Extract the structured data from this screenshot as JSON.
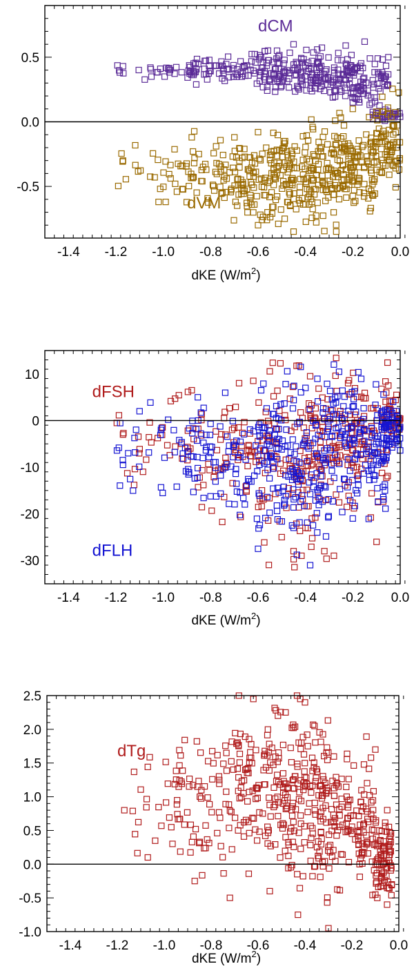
{
  "chart_data": [
    {
      "type": "scatter",
      "xlabel": "dKE (W/m",
      "xlabel_sup": "2",
      "xlabel_end": ")",
      "xlim": [
        -1.5,
        0.0
      ],
      "ylim": [
        -0.9,
        0.9
      ],
      "xticks": [
        -1.4,
        -1.2,
        -1.0,
        -0.8,
        -0.6,
        -0.4,
        -0.2,
        0.0
      ],
      "xtick_labels": [
        "-1.4",
        "-1.2",
        "-1.0",
        "-0.8",
        "-0.6",
        "-0.4",
        "-0.2",
        "0.0"
      ],
      "yticks": [
        -0.5,
        0.0,
        0.5
      ],
      "ytick_labels": [
        "-0.5",
        "0.0",
        "0.5"
      ],
      "zero_line": 0.0,
      "annotations": [
        {
          "text": "dCM",
          "color": "#5b2b97",
          "x": -0.6,
          "y": 0.7
        },
        {
          "text": "dVM",
          "color": "#9a6a00",
          "x": -0.9,
          "y": -0.67
        }
      ],
      "series": [
        {
          "color": "#5b2b97",
          "cloud": [
            [
              -1.2,
              -0.9,
              0.4,
              0.04,
              20
            ],
            [
              -0.9,
              -0.6,
              0.4,
              0.05,
              70
            ],
            [
              -0.6,
              -0.3,
              0.38,
              0.08,
              150
            ],
            [
              -0.3,
              -0.05,
              0.32,
              0.1,
              130
            ],
            [
              -0.12,
              0.0,
              0.05,
              0.02,
              30
            ]
          ],
          "points": [
            [
              -1.17,
              0.43
            ],
            [
              -1.05,
              0.35
            ],
            [
              -0.45,
              0.6
            ],
            [
              -0.15,
              0.62
            ],
            [
              -0.23,
              0.59
            ],
            [
              -0.2,
              0.15
            ],
            [
              -0.05,
              0.5
            ],
            [
              -0.52,
              0.55
            ],
            [
              -0.35,
              0.56
            ]
          ]
        },
        {
          "color": "#9a6a00",
          "cloud": [
            [
              -1.2,
              -0.95,
              -0.38,
              0.08,
              20
            ],
            [
              -0.95,
              -0.75,
              -0.4,
              0.12,
              45
            ],
            [
              -0.75,
              -0.55,
              -0.45,
              0.15,
              90
            ],
            [
              -0.55,
              -0.3,
              -0.42,
              0.17,
              170
            ],
            [
              -0.3,
              -0.1,
              -0.35,
              0.17,
              150
            ],
            [
              -0.1,
              0.0,
              -0.15,
              0.15,
              70
            ]
          ],
          "points": [
            [
              -1.17,
              -0.3
            ],
            [
              -1.02,
              -0.62
            ],
            [
              -0.99,
              -0.62
            ],
            [
              -0.88,
              -0.12
            ],
            [
              -0.85,
              -0.25
            ],
            [
              -0.7,
              -0.12
            ],
            [
              -0.6,
              -0.08
            ],
            [
              -0.45,
              -0.85
            ],
            [
              -0.27,
              -0.85
            ],
            [
              -0.6,
              -0.8
            ],
            [
              -0.1,
              0.05
            ],
            [
              -0.2,
              0.1
            ],
            [
              -0.37,
              -0.04
            ],
            [
              -0.56,
              -0.7
            ]
          ]
        }
      ]
    },
    {
      "type": "scatter",
      "xlabel": "dKE (W/m",
      "xlabel_sup": "2",
      "xlabel_end": ")",
      "xlim": [
        -1.5,
        0.0
      ],
      "ylim": [
        -35,
        15
      ],
      "xticks": [
        -1.4,
        -1.2,
        -1.0,
        -0.8,
        -0.6,
        -0.4,
        -0.2,
        0.0
      ],
      "xtick_labels": [
        "-1.4",
        "-1.2",
        "-1.0",
        "-0.8",
        "-0.6",
        "-0.4",
        "-0.2",
        "0.0"
      ],
      "yticks": [
        -30,
        -20,
        -10,
        0,
        10
      ],
      "ytick_labels": [
        "-30",
        "-20",
        "-10",
        "0",
        "10"
      ],
      "zero_line": 0,
      "annotations": [
        {
          "text": "dFSH",
          "color": "#b01c1c",
          "x": -1.3,
          "y": 5
        },
        {
          "text": "dFLH",
          "color": "#1414d2",
          "x": -1.3,
          "y": -29
        }
      ],
      "series": [
        {
          "color": "#b01c1c",
          "cloud": [
            [
              -1.2,
              -0.9,
              -5,
              4,
              25
            ],
            [
              -0.9,
              -0.6,
              -6,
              6,
              70
            ],
            [
              -0.6,
              -0.3,
              -8,
              9,
              150
            ],
            [
              -0.3,
              -0.05,
              -5,
              7,
              120
            ],
            [
              -0.08,
              0.0,
              0,
              3,
              40
            ]
          ],
          "points": [
            [
              -1.17,
              -3
            ],
            [
              -0.88,
              6.5
            ],
            [
              -0.68,
              8
            ],
            [
              -0.62,
              8.5
            ],
            [
              -0.38,
              9.5
            ],
            [
              -0.45,
              -28
            ],
            [
              -0.32,
              -28
            ],
            [
              -0.28,
              -29
            ],
            [
              -0.1,
              -26
            ],
            [
              -0.4,
              -23
            ],
            [
              -0.5,
              -25
            ],
            [
              -0.22,
              8
            ],
            [
              -0.05,
              7.5
            ]
          ]
        },
        {
          "color": "#1414d2",
          "cloud": [
            [
              -1.2,
              -0.9,
              -7,
              5,
              30
            ],
            [
              -0.9,
              -0.6,
              -8,
              6,
              80
            ],
            [
              -0.6,
              -0.3,
              -8,
              8,
              170
            ],
            [
              -0.3,
              -0.05,
              -6,
              7,
              140
            ],
            [
              -0.08,
              0.0,
              -2,
              3,
              50
            ]
          ],
          "points": [
            [
              -1.17,
              -9.5
            ],
            [
              -1.1,
              2
            ],
            [
              -0.42,
              11.5
            ],
            [
              -0.28,
              12
            ],
            [
              -0.38,
              -31
            ],
            [
              -0.35,
              -24
            ],
            [
              -0.6,
              -27.5
            ],
            [
              -0.45,
              -23
            ],
            [
              -0.2,
              -21
            ],
            [
              -0.4,
              7
            ]
          ]
        }
      ]
    },
    {
      "type": "scatter",
      "xlabel": "dKE (W/m",
      "xlabel_sup": "2",
      "xlabel_end": ")",
      "xlim": [
        -1.5,
        0.0
      ],
      "ylim": [
        -1.0,
        2.5
      ],
      "xticks": [
        -1.4,
        -1.2,
        -1.0,
        -0.8,
        -0.6,
        -0.4,
        -0.2,
        0.0
      ],
      "xtick_labels": [
        "-1.4",
        "-1.2",
        "-1.0",
        "-0.8",
        "-0.6",
        "-0.4",
        "-0.2",
        "0.0"
      ],
      "yticks": [
        -1.0,
        -0.5,
        0.0,
        0.5,
        1.0,
        1.5,
        2.0,
        2.5
      ],
      "ytick_labels": [
        "-1.0",
        "-0.5",
        "0.0",
        "0.5",
        "1.0",
        "1.5",
        "2.0",
        "2.5"
      ],
      "zero_line": 0.0,
      "annotations": [
        {
          "text": "dTg",
          "color": "#b01c1c",
          "x": -1.2,
          "y": 1.6
        }
      ],
      "series": [
        {
          "color": "#b01c1c",
          "cloud": [
            [
              -1.15,
              -0.95,
              0.75,
              0.35,
              20
            ],
            [
              -0.95,
              -0.75,
              0.9,
              0.5,
              60
            ],
            [
              -0.75,
              -0.5,
              1.2,
              0.55,
              120
            ],
            [
              -0.5,
              -0.3,
              1.0,
              0.6,
              160
            ],
            [
              -0.3,
              -0.1,
              0.6,
              0.5,
              120
            ],
            [
              -0.1,
              -0.03,
              0.05,
              0.3,
              80
            ]
          ],
          "points": [
            [
              -1.17,
              0.8
            ],
            [
              -1.07,
              0.1
            ],
            [
              -0.87,
              -0.25
            ],
            [
              -0.72,
              -0.5
            ],
            [
              -0.55,
              -0.4
            ],
            [
              -0.43,
              -0.75
            ],
            [
              -0.3,
              -0.95
            ],
            [
              -0.05,
              -0.6
            ],
            [
              -0.62,
              2.45
            ],
            [
              -0.42,
              2.45
            ],
            [
              -0.4,
              2.4
            ],
            [
              -0.1,
              1.7
            ],
            [
              -0.1,
              -0.45
            ],
            [
              -0.03,
              -0.3
            ]
          ]
        }
      ]
    }
  ]
}
